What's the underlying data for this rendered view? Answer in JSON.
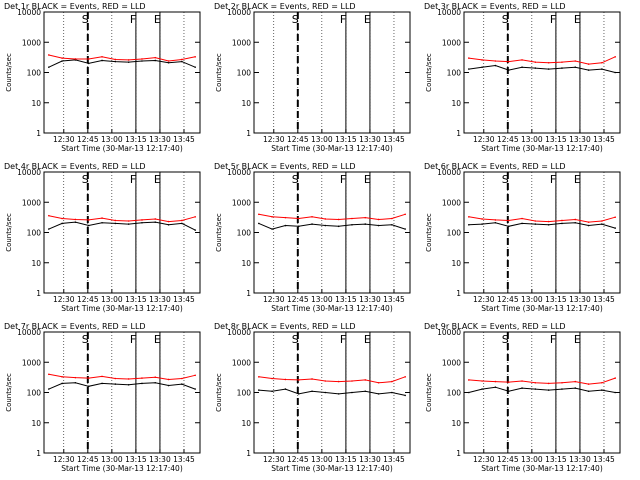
{
  "figure": {
    "layout": "3x3 grid of panels",
    "background": "#ffffff",
    "colors": {
      "events": "#000000",
      "lld": "#ff0000",
      "axes": "#000000"
    }
  },
  "chart_data": [
    {
      "type": "line",
      "title": "Det 1r  BLACK = Events, RED = LLD",
      "xlabel": "Start Time (30-Mar-13 12:17:40)",
      "ylabel": "Counts/sec",
      "x_ticks": [
        "12:30",
        "12:45",
        "13:00",
        "13:15",
        "13:30",
        "13:45"
      ],
      "y_ticks": [
        "1",
        "10",
        "100",
        "1000",
        "10000"
      ],
      "y_scale": "log",
      "ylim": [
        1,
        10000
      ],
      "markers": [
        {
          "label": "S",
          "time": "12:45"
        },
        {
          "label": "F",
          "time": "13:15"
        },
        {
          "label": "E",
          "time": "13:30"
        }
      ],
      "series": [
        {
          "name": "Events",
          "color": "#000000",
          "values": [
            150,
            240,
            260,
            200,
            250,
            230,
            220,
            240,
            250,
            210,
            230,
            150
          ]
        },
        {
          "name": "LLD",
          "color": "#ff0000",
          "values": [
            380,
            300,
            280,
            280,
            330,
            270,
            260,
            280,
            310,
            240,
            270,
            330
          ]
        }
      ]
    },
    {
      "type": "line",
      "title": "Det 2r  BLACK = Events, RED = LLD",
      "xlabel": "Start Time (30-Mar-13 12:17:40)",
      "ylabel": "Counts/sec",
      "x_ticks": [
        "12:30",
        "12:45",
        "13:00",
        "13:15",
        "13:30",
        "13:45"
      ],
      "y_ticks": [
        "1",
        "10",
        "100",
        "1000",
        "10000"
      ],
      "y_scale": "log",
      "ylim": [
        1,
        10000
      ],
      "markers": [
        {
          "label": "S",
          "time": "12:45"
        },
        {
          "label": "F",
          "time": "13:15"
        },
        {
          "label": "E",
          "time": "13:30"
        }
      ],
      "series": []
    },
    {
      "type": "line",
      "title": "Det 3r  BLACK = Events, RED = LLD",
      "xlabel": "Start Time (30-Mar-13 12:17:40)",
      "ylabel": "Counts/sec",
      "x_ticks": [
        "12:30",
        "12:45",
        "13:00",
        "13:15",
        "13:30",
        "13:45"
      ],
      "y_ticks": [
        "1",
        "10",
        "100",
        "1000",
        "10000"
      ],
      "y_scale": "log",
      "ylim": [
        1,
        10000
      ],
      "markers": [
        {
          "label": "S",
          "time": "12:45"
        },
        {
          "label": "F",
          "time": "13:15"
        },
        {
          "label": "E",
          "time": "13:30"
        }
      ],
      "series": [
        {
          "name": "Events",
          "color": "#000000",
          "values": [
            130,
            150,
            170,
            120,
            150,
            140,
            130,
            140,
            150,
            120,
            130,
            100
          ]
        },
        {
          "name": "LLD",
          "color": "#ff0000",
          "values": [
            300,
            260,
            240,
            230,
            260,
            220,
            210,
            220,
            240,
            190,
            210,
            330
          ]
        }
      ]
    },
    {
      "type": "line",
      "title": "Det 4r  BLACK = Events, RED = LLD",
      "xlabel": "Start Time (30-Mar-13 12:17:40)",
      "ylabel": "Counts/sec",
      "x_ticks": [
        "12:30",
        "12:45",
        "13:00",
        "13:15",
        "13:30",
        "13:45"
      ],
      "y_ticks": [
        "1",
        "10",
        "100",
        "1000",
        "10000"
      ],
      "y_scale": "log",
      "ylim": [
        1,
        10000
      ],
      "markers": [
        {
          "label": "S",
          "time": "12:45"
        },
        {
          "label": "F",
          "time": "13:15"
        },
        {
          "label": "E",
          "time": "13:30"
        }
      ],
      "series": [
        {
          "name": "Events",
          "color": "#000000",
          "values": [
            130,
            200,
            220,
            170,
            210,
            200,
            190,
            210,
            220,
            180,
            200,
            120
          ]
        },
        {
          "name": "LLD",
          "color": "#ff0000",
          "values": [
            360,
            290,
            270,
            260,
            300,
            250,
            240,
            260,
            280,
            230,
            250,
            330
          ]
        }
      ]
    },
    {
      "type": "line",
      "title": "Det 5r  BLACK = Events, RED = LLD",
      "xlabel": "Start Time (30-Mar-13 12:17:40)",
      "ylabel": "Counts/sec",
      "x_ticks": [
        "12:30",
        "12:45",
        "13:00",
        "13:15",
        "13:30",
        "13:45"
      ],
      "y_ticks": [
        "1",
        "10",
        "100",
        "1000",
        "10000"
      ],
      "y_scale": "log",
      "ylim": [
        1,
        10000
      ],
      "markers": [
        {
          "label": "S",
          "time": "12:45"
        },
        {
          "label": "F",
          "time": "13:15"
        },
        {
          "label": "E",
          "time": "13:30"
        }
      ],
      "series": [
        {
          "name": "Events",
          "color": "#000000",
          "values": [
            200,
            130,
            170,
            160,
            190,
            170,
            160,
            180,
            190,
            170,
            180,
            130
          ]
        },
        {
          "name": "LLD",
          "color": "#ff0000",
          "values": [
            400,
            330,
            310,
            290,
            330,
            280,
            270,
            290,
            310,
            270,
            290,
            400
          ]
        }
      ]
    },
    {
      "type": "line",
      "title": "Det 6r  BLACK = Events, RED = LLD",
      "xlabel": "Start Time (30-Mar-13 12:17:40)",
      "ylabel": "Counts/sec",
      "x_ticks": [
        "12:30",
        "12:45",
        "13:00",
        "13:15",
        "13:30",
        "13:45"
      ],
      "y_ticks": [
        "1",
        "10",
        "100",
        "1000",
        "10000"
      ],
      "y_scale": "log",
      "ylim": [
        1,
        10000
      ],
      "markers": [
        {
          "label": "S",
          "time": "12:45"
        },
        {
          "label": "F",
          "time": "13:15"
        },
        {
          "label": "E",
          "time": "13:30"
        }
      ],
      "series": [
        {
          "name": "Events",
          "color": "#000000",
          "values": [
            180,
            190,
            210,
            160,
            200,
            190,
            180,
            200,
            210,
            170,
            190,
            140
          ]
        },
        {
          "name": "LLD",
          "color": "#ff0000",
          "values": [
            330,
            280,
            260,
            250,
            290,
            240,
            230,
            250,
            270,
            220,
            240,
            320
          ]
        }
      ]
    },
    {
      "type": "line",
      "title": "Det 7r  BLACK = Events, RED = LLD",
      "xlabel": "Start Time (30-Mar-13 12:17:40)",
      "ylabel": "Counts/sec",
      "x_ticks": [
        "12:30",
        "12:45",
        "13:00",
        "13:15",
        "13:30",
        "13:45"
      ],
      "y_ticks": [
        "1",
        "10",
        "100",
        "1000",
        "10000"
      ],
      "y_scale": "log",
      "ylim": [
        1,
        10000
      ],
      "markers": [
        {
          "label": "S",
          "time": "12:45"
        },
        {
          "label": "F",
          "time": "13:15"
        },
        {
          "label": "E",
          "time": "13:30"
        }
      ],
      "series": [
        {
          "name": "Events",
          "color": "#000000",
          "values": [
            130,
            200,
            210,
            160,
            200,
            190,
            180,
            200,
            210,
            170,
            190,
            130
          ]
        },
        {
          "name": "LLD",
          "color": "#ff0000",
          "values": [
            400,
            330,
            310,
            300,
            340,
            290,
            280,
            300,
            320,
            270,
            290,
            370
          ]
        }
      ]
    },
    {
      "type": "line",
      "title": "Det 8r  BLACK = Events, RED = LLD",
      "xlabel": "Start Time (30-Mar-13 12:17:40)",
      "ylabel": "Counts/sec",
      "x_ticks": [
        "12:30",
        "12:45",
        "13:00",
        "13:15",
        "13:30",
        "13:45"
      ],
      "y_ticks": [
        "1",
        "10",
        "100",
        "1000",
        "10000"
      ],
      "y_scale": "log",
      "ylim": [
        1,
        10000
      ],
      "markers": [
        {
          "label": "S",
          "time": "12:45"
        },
        {
          "label": "F",
          "time": "13:15"
        },
        {
          "label": "E",
          "time": "13:30"
        }
      ],
      "series": [
        {
          "name": "Events",
          "color": "#000000",
          "values": [
            120,
            110,
            130,
            90,
            110,
            100,
            90,
            100,
            110,
            90,
            100,
            80
          ]
        },
        {
          "name": "LLD",
          "color": "#ff0000",
          "values": [
            330,
            290,
            270,
            260,
            280,
            240,
            230,
            240,
            260,
            210,
            230,
            330
          ]
        }
      ]
    },
    {
      "type": "line",
      "title": "Det 9r  BLACK = Events, RED = LLD",
      "xlabel": "Start Time (30-Mar-13 12:17:40)",
      "ylabel": "Counts/sec",
      "x_ticks": [
        "12:30",
        "12:45",
        "13:00",
        "13:15",
        "13:30",
        "13:45"
      ],
      "y_ticks": [
        "1",
        "10",
        "100",
        "1000",
        "10000"
      ],
      "y_scale": "log",
      "ylim": [
        1,
        10000
      ],
      "markers": [
        {
          "label": "S",
          "time": "12:45"
        },
        {
          "label": "F",
          "time": "13:15"
        },
        {
          "label": "E",
          "time": "13:30"
        }
      ],
      "series": [
        {
          "name": "Events",
          "color": "#000000",
          "values": [
            100,
            130,
            150,
            110,
            140,
            130,
            120,
            130,
            140,
            110,
            120,
            100
          ]
        },
        {
          "name": "LLD",
          "color": "#ff0000",
          "values": [
            260,
            240,
            230,
            220,
            240,
            210,
            200,
            210,
            230,
            190,
            210,
            300
          ]
        }
      ]
    }
  ]
}
